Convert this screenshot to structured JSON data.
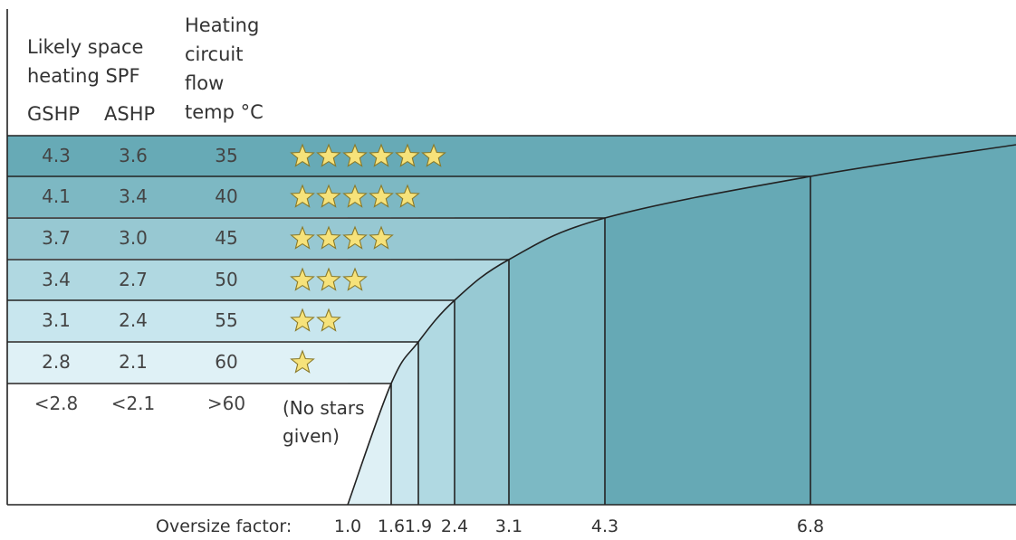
{
  "header": {
    "spf_label": "Likely space\nheating SPF",
    "gshp_label": "GSHP",
    "ashp_label": "ASHP",
    "flow_label": "Heating\ncircuit\nflow\ntemp °C"
  },
  "chart_data": {
    "type": "table",
    "rows": [
      {
        "gshp": "4.3",
        "ashp": "3.6",
        "flow": "35",
        "stars": 6,
        "color": "#67aab6"
      },
      {
        "gshp": "4.1",
        "ashp": "3.4",
        "flow": "40",
        "stars": 5,
        "color": "#7db8c3"
      },
      {
        "gshp": "3.7",
        "ashp": "3.0",
        "flow": "45",
        "stars": 4,
        "color": "#97c8d2"
      },
      {
        "gshp": "3.4",
        "ashp": "2.7",
        "flow": "50",
        "stars": 3,
        "color": "#b0d8e1"
      },
      {
        "gshp": "3.1",
        "ashp": "2.4",
        "flow": "55",
        "stars": 2,
        "color": "#c8e6ee"
      },
      {
        "gshp": "2.8",
        "ashp": "2.1",
        "flow": "60",
        "stars": 1,
        "color": "#dff1f6"
      },
      {
        "gshp": "<2.8",
        "ashp": "<2.1",
        "flow": ">60",
        "stars": 0,
        "note": "(No stars\ngiven)",
        "color": "#ffffff"
      }
    ],
    "xlabel": "Oversize factor:",
    "x_ticks": [
      "1.0",
      "1.6",
      "1.9",
      "2.4",
      "3.1",
      "4.3",
      "6.8"
    ],
    "x_values": [
      1.0,
      1.6,
      1.9,
      2.4,
      3.1,
      4.3,
      6.8
    ],
    "region_colors": [
      "#def0f5",
      "#c9e6ee",
      "#b0d9e2",
      "#97c9d3",
      "#7cb9c4",
      "#66a9b5"
    ],
    "star_color": "#f6e27a",
    "star_stroke": "#8a7a2a"
  }
}
